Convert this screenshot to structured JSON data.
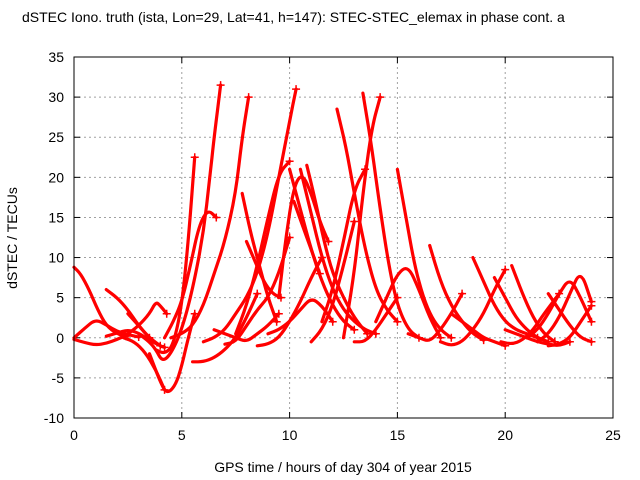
{
  "chart_data": {
    "type": "scatter",
    "title": "dSTEC Iono. truth (ista, Lon=29, Lat=41, h=147): STEC-STEC_elemax in phase cont. a",
    "xlabel": "GPS time / hours of day 304 of year 2015",
    "ylabel": "dSTEC  / TECUs",
    "xlim": [
      0,
      25
    ],
    "ylim": [
      -10,
      35
    ],
    "xticks": [
      "0",
      "5",
      "10",
      "15",
      "20",
      "25"
    ],
    "yticks": [
      "-10",
      "-5",
      "0",
      "5",
      "10",
      "15",
      "20",
      "25",
      "30",
      "35"
    ],
    "grid": true,
    "marker": "plus",
    "color": "#ff0000",
    "series": [
      {
        "x": [
          0.0,
          0.3,
          0.7,
          1.1,
          1.5,
          2.0,
          2.4
        ],
        "y": [
          8.8,
          8.0,
          6.0,
          3.5,
          1.5,
          0.5,
          0.2
        ]
      },
      {
        "x": [
          0.0,
          0.5,
          1.0,
          1.5,
          2.0,
          2.5
        ],
        "y": [
          -0.2,
          -0.6,
          -0.9,
          -0.7,
          -0.2,
          0.4
        ]
      },
      {
        "x": [
          0.0,
          0.5,
          1.0,
          1.5,
          2.0,
          2.5,
          3.0
        ],
        "y": [
          0.0,
          1.2,
          2.3,
          1.6,
          0.8,
          0.4,
          0.1
        ]
      },
      {
        "x": [
          1.5,
          2.0,
          2.5,
          3.0,
          3.5
        ],
        "y": [
          6.0,
          5.0,
          3.5,
          1.5,
          0.0
        ]
      },
      {
        "x": [
          1.5,
          2.0,
          2.5,
          3.0,
          3.5,
          4.0,
          4.2
        ],
        "y": [
          0.2,
          0.6,
          1.0,
          0.6,
          -0.3,
          -1.0,
          -1.2
        ]
      },
      {
        "x": [
          2.5,
          3.0,
          3.5,
          4.0
        ],
        "y": [
          3.0,
          1.5,
          0.0,
          -1.0
        ]
      },
      {
        "x": [
          2.3,
          2.8,
          3.3,
          3.8,
          4.2
        ],
        "y": [
          0.0,
          -0.5,
          -1.8,
          -4.0,
          -6.5
        ]
      },
      {
        "x": [
          2.5,
          3.0,
          3.5,
          3.8,
          4.0,
          4.3
        ],
        "y": [
          0.5,
          1.5,
          3.0,
          4.5,
          4.0,
          3.0
        ]
      },
      {
        "x": [
          3.0,
          3.5,
          3.8,
          4.1,
          4.5,
          5.0,
          5.5,
          6.0,
          6.3,
          6.5,
          6.8
        ],
        "y": [
          0.5,
          -0.5,
          -1.5,
          -3.0,
          -2.0,
          1.0,
          6.0,
          13.0,
          20.0,
          25.0,
          31.5
        ]
      },
      {
        "x": [
          3.5,
          4.0,
          4.3,
          4.7,
          5.0,
          5.3,
          5.6
        ],
        "y": [
          -2.0,
          -5.5,
          -7.0,
          -6.0,
          -3.5,
          0.0,
          3.0
        ]
      },
      {
        "x": [
          3.8,
          4.2,
          4.6,
          5.0,
          5.3,
          5.6
        ],
        "y": [
          -1.5,
          -2.0,
          -1.0,
          4.0,
          12.0,
          22.5
        ]
      },
      {
        "x": [
          4.2,
          4.6,
          5.0,
          5.4,
          5.8,
          6.2,
          6.6
        ],
        "y": [
          0.0,
          2.0,
          4.5,
          9.0,
          14.0,
          16.0,
          15.0
        ]
      },
      {
        "x": [
          4.5,
          5.0,
          5.5,
          6.0,
          6.5,
          7.0,
          7.5,
          7.8,
          8.1
        ],
        "y": [
          0.0,
          0.5,
          1.5,
          4.0,
          8.0,
          12.0,
          18.0,
          25.0,
          30.0
        ]
      },
      {
        "x": [
          5.5,
          6.0,
          6.5,
          7.0,
          7.5,
          8.0,
          8.5
        ],
        "y": [
          -3.0,
          -3.0,
          -2.5,
          -1.5,
          0.0,
          2.5,
          5.5
        ]
      },
      {
        "x": [
          6.0,
          6.5,
          7.0,
          7.5,
          8.0,
          8.5,
          9.0,
          9.5,
          10.0,
          10.3
        ],
        "y": [
          -0.5,
          0.0,
          1.0,
          3.0,
          5.0,
          8.0,
          13.0,
          20.0,
          27.0,
          31.0
        ]
      },
      {
        "x": [
          6.5,
          7.0,
          7.5,
          8.0,
          8.5,
          9.0,
          9.5
        ],
        "y": [
          1.0,
          0.5,
          0.0,
          -0.5,
          0.5,
          1.5,
          3.0
        ]
      },
      {
        "x": [
          7.0,
          7.5,
          8.0,
          8.5,
          9.0,
          9.5,
          10.0
        ],
        "y": [
          -0.8,
          -0.5,
          1.5,
          3.5,
          5.0,
          8.0,
          12.5
        ]
      },
      {
        "x": [
          7.5,
          8.0,
          8.5,
          9.0,
          9.5,
          10.0
        ],
        "y": [
          0.5,
          4.0,
          9.0,
          15.0,
          20.5,
          22.0
        ]
      },
      {
        "x": [
          7.8,
          8.2,
          8.6,
          9.0,
          9.4
        ],
        "y": [
          18.0,
          13.0,
          9.0,
          5.0,
          2.0
        ]
      },
      {
        "x": [
          8.0,
          8.4,
          8.8,
          9.2,
          9.6
        ],
        "y": [
          12.0,
          9.5,
          7.0,
          5.5,
          5.0
        ]
      },
      {
        "x": [
          8.5,
          9.0,
          9.5,
          10.0,
          10.5,
          11.0,
          11.5
        ],
        "y": [
          -1.0,
          -0.8,
          0.0,
          2.0,
          4.5,
          7.5,
          10.0
        ]
      },
      {
        "x": [
          9.0,
          9.5,
          10.0,
          10.5,
          11.0,
          11.5,
          12.0
        ],
        "y": [
          0.5,
          1.0,
          2.0,
          3.5,
          5.0,
          4.0,
          2.0
        ]
      },
      {
        "x": [
          9.5,
          9.8,
          10.2,
          10.6,
          11.0,
          11.4,
          11.8
        ],
        "y": [
          5.0,
          12.0,
          19.0,
          20.5,
          18.0,
          14.5,
          12.0
        ]
      },
      {
        "x": [
          10.0,
          10.5,
          11.0,
          11.5,
          12.0,
          12.5,
          13.0
        ],
        "y": [
          21.0,
          16.0,
          11.0,
          7.0,
          4.0,
          2.0,
          1.0
        ]
      },
      {
        "x": [
          10.2,
          10.6,
          11.0,
          11.4
        ],
        "y": [
          17.0,
          14.0,
          11.0,
          8.0
        ]
      },
      {
        "x": [
          10.5,
          11.0,
          11.5,
          12.0,
          12.5,
          13.0,
          13.5,
          14.0
        ],
        "y": [
          21.0,
          15.5,
          10.0,
          6.0,
          3.5,
          2.0,
          1.0,
          0.5
        ]
      },
      {
        "x": [
          10.8,
          11.2,
          11.6,
          12.0,
          12.5,
          13.0,
          13.6
        ],
        "y": [
          21.5,
          17.0,
          12.0,
          8.0,
          5.0,
          2.5,
          0.5
        ]
      },
      {
        "x": [
          11.0,
          11.5,
          12.0,
          12.5,
          13.0
        ],
        "y": [
          -0.5,
          1.0,
          4.0,
          9.0,
          14.5
        ]
      },
      {
        "x": [
          11.5,
          12.0,
          12.5,
          13.0,
          13.5
        ],
        "y": [
          2.0,
          6.0,
          12.0,
          18.5,
          21.0
        ]
      },
      {
        "x": [
          12.2,
          12.6,
          13.0,
          13.5,
          14.0,
          14.5,
          15.0
        ],
        "y": [
          28.5,
          24.0,
          18.0,
          11.0,
          6.0,
          3.5,
          2.0
        ]
      },
      {
        "x": [
          12.5,
          13.0,
          13.4,
          13.8,
          14.2
        ],
        "y": [
          0.0,
          8.0,
          18.0,
          26.0,
          30.0
        ]
      },
      {
        "x": [
          13.0,
          13.5,
          14.0,
          14.5,
          15.0
        ],
        "y": [
          -0.5,
          -0.5,
          1.0,
          3.0,
          5.0
        ]
      },
      {
        "x": [
          13.4,
          13.8,
          14.2,
          14.6,
          15.0,
          15.5,
          16.0
        ],
        "y": [
          30.5,
          24.0,
          16.0,
          9.0,
          4.0,
          1.0,
          0.0
        ]
      },
      {
        "x": [
          14.0,
          14.5,
          15.0,
          15.5,
          16.0,
          16.5,
          17.0
        ],
        "y": [
          2.0,
          5.0,
          8.0,
          9.0,
          6.0,
          2.5,
          0.0
        ]
      },
      {
        "x": [
          15.0,
          15.4,
          15.8,
          16.2,
          16.6,
          17.0,
          17.5
        ],
        "y": [
          21.0,
          15.0,
          9.0,
          5.0,
          2.5,
          1.0,
          0.0
        ]
      },
      {
        "x": [
          15.5,
          16.0,
          16.5,
          17.0,
          17.5,
          18.0
        ],
        "y": [
          0.5,
          0.0,
          -0.5,
          1.0,
          3.0,
          5.5
        ]
      },
      {
        "x": [
          16.5,
          17.0,
          17.5,
          18.0,
          18.5,
          19.0
        ],
        "y": [
          11.5,
          7.0,
          4.0,
          2.0,
          0.5,
          -0.3
        ]
      },
      {
        "x": [
          17.0,
          17.5,
          18.0,
          18.5,
          19.0,
          19.5,
          20.0
        ],
        "y": [
          -0.5,
          -1.0,
          -0.5,
          1.0,
          3.0,
          6.0,
          8.5
        ]
      },
      {
        "x": [
          17.5,
          18.0,
          18.5,
          19.0,
          19.5,
          20.0
        ],
        "y": [
          3.0,
          2.0,
          1.0,
          0.0,
          -0.5,
          -1.0
        ]
      },
      {
        "x": [
          18.5,
          19.0,
          19.5,
          20.0,
          20.5,
          21.0,
          21.5
        ],
        "y": [
          10.0,
          7.0,
          4.0,
          2.0,
          1.0,
          0.5,
          0.0
        ]
      },
      {
        "x": [
          19.5,
          20.0,
          20.5,
          21.0,
          21.5,
          22.0
        ],
        "y": [
          7.5,
          5.0,
          2.5,
          1.0,
          0.0,
          -0.5
        ]
      },
      {
        "x": [
          19.8,
          20.3,
          20.8,
          21.3,
          21.8,
          22.5
        ],
        "y": [
          -0.5,
          -0.8,
          -0.3,
          1.0,
          3.0,
          5.5
        ]
      },
      {
        "x": [
          20.0,
          20.5,
          21.0,
          21.5,
          22.0,
          22.5,
          23.0
        ],
        "y": [
          1.0,
          0.5,
          0.0,
          -0.5,
          -0.8,
          -1.0,
          -0.5
        ]
      },
      {
        "x": [
          20.3,
          20.8,
          21.3,
          21.8,
          22.3
        ],
        "y": [
          9.0,
          5.5,
          2.5,
          0.5,
          -0.5
        ]
      },
      {
        "x": [
          21.0,
          21.5,
          22.0,
          22.5,
          23.0,
          23.5,
          24.0
        ],
        "y": [
          0.0,
          1.0,
          3.0,
          5.5,
          7.5,
          5.0,
          2.0
        ]
      },
      {
        "x": [
          21.5,
          22.0,
          22.5,
          23.0,
          23.5,
          24.0
        ],
        "y": [
          -0.5,
          0.5,
          2.5,
          5.5,
          8.5,
          4.5
        ]
      },
      {
        "x": [
          22.0,
          22.5,
          23.0,
          23.5,
          24.0
        ],
        "y": [
          5.5,
          3.5,
          1.5,
          0.0,
          -0.5
        ]
      },
      {
        "x": [
          22.0,
          22.5,
          23.0,
          23.5,
          24.0
        ],
        "y": [
          -1.0,
          -0.8,
          0.0,
          2.0,
          4.0
        ]
      }
    ]
  }
}
